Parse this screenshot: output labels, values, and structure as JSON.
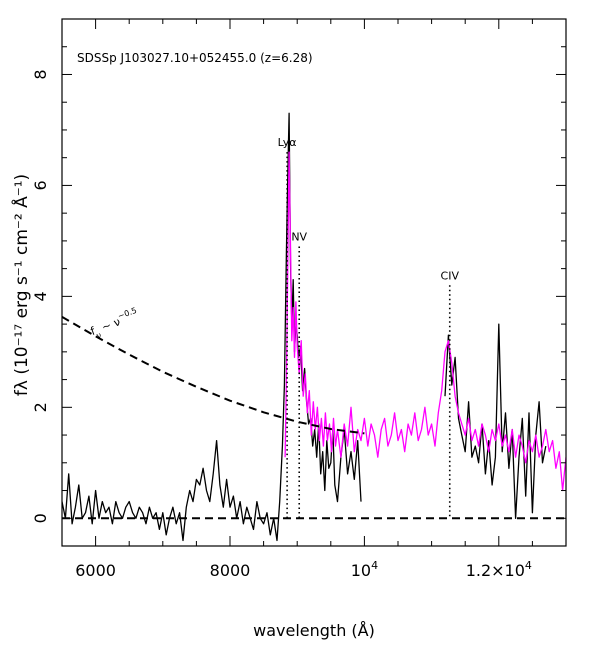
{
  "chart_data": {
    "type": "line",
    "title": "SDSSp J103027.10+052455.0 (z=6.28)",
    "xlabel": "wavelength (Å)",
    "ylabel": "fλ (10⁻¹⁷ erg s⁻¹ cm⁻² Å⁻¹)",
    "xlim": [
      5500,
      13000
    ],
    "ylim": [
      -0.5,
      9.0
    ],
    "x_ticks": [
      {
        "value": 6000,
        "label": "6000"
      },
      {
        "value": 8000,
        "label": "8000"
      },
      {
        "value": 10000,
        "label": "10⁴"
      },
      {
        "value": 12000,
        "label": "1.2×10⁴"
      }
    ],
    "y_ticks": [
      {
        "value": 0,
        "label": "0"
      },
      {
        "value": 2,
        "label": "2"
      },
      {
        "value": 4,
        "label": "4"
      },
      {
        "value": 6,
        "label": "6"
      },
      {
        "value": 8,
        "label": "8"
      }
    ],
    "colors": {
      "optical": "#000000",
      "infrared": "#ff00ff",
      "model": "#000000"
    },
    "annotations": [
      {
        "label": "Lyα",
        "x": 8850,
        "y_top": 6.6,
        "y_bottom": 0.0
      },
      {
        "label": "NV",
        "x": 9030,
        "y_top": 4.9,
        "y_bottom": 0.0
      },
      {
        "label": "CIV",
        "x": 11270,
        "y_top": 4.2,
        "y_bottom": 0.0
      }
    ],
    "powerlaw_label": {
      "base": "f",
      "sub": "ν",
      "mid": " ~ ν",
      "sup": "−0.5",
      "x": 5950,
      "y": 3.3
    },
    "series": [
      {
        "style": "solid",
        "points": [
          [
            5500,
            0.3
          ],
          [
            5550,
            0.0
          ],
          [
            5600,
            0.8
          ],
          [
            5650,
            -0.1
          ],
          [
            5700,
            0.2
          ],
          [
            5750,
            0.6
          ],
          [
            5800,
            0.0
          ],
          [
            5850,
            0.1
          ],
          [
            5900,
            0.4
          ],
          [
            5950,
            -0.1
          ],
          [
            6000,
            0.5
          ],
          [
            6050,
            0.0
          ],
          [
            6100,
            0.3
          ],
          [
            6150,
            0.1
          ],
          [
            6200,
            0.2
          ],
          [
            6250,
            -0.1
          ],
          [
            6300,
            0.3
          ],
          [
            6350,
            0.1
          ],
          [
            6400,
            0.0
          ],
          [
            6450,
            0.2
          ],
          [
            6500,
            0.3
          ],
          [
            6550,
            0.1
          ],
          [
            6600,
            0.0
          ],
          [
            6650,
            0.2
          ],
          [
            6700,
            0.1
          ],
          [
            6750,
            -0.1
          ],
          [
            6800,
            0.2
          ],
          [
            6850,
            0.0
          ],
          [
            6900,
            0.1
          ],
          [
            6950,
            -0.2
          ],
          [
            7000,
            0.1
          ],
          [
            7050,
            -0.3
          ],
          [
            7100,
            0.0
          ],
          [
            7150,
            0.2
          ],
          [
            7200,
            -0.1
          ],
          [
            7250,
            0.1
          ],
          [
            7300,
            -0.4
          ],
          [
            7350,
            0.2
          ],
          [
            7400,
            0.5
          ],
          [
            7450,
            0.3
          ],
          [
            7500,
            0.7
          ],
          [
            7550,
            0.6
          ],
          [
            7600,
            0.9
          ],
          [
            7650,
            0.5
          ],
          [
            7700,
            0.3
          ],
          [
            7750,
            0.8
          ],
          [
            7800,
            1.4
          ],
          [
            7850,
            0.6
          ],
          [
            7900,
            0.2
          ],
          [
            7950,
            0.7
          ],
          [
            8000,
            0.2
          ],
          [
            8050,
            0.4
          ],
          [
            8100,
            0.0
          ],
          [
            8150,
            0.3
          ],
          [
            8200,
            -0.1
          ],
          [
            8250,
            0.2
          ],
          [
            8300,
            0.0
          ],
          [
            8350,
            -0.2
          ],
          [
            8400,
            0.3
          ],
          [
            8450,
            0.0
          ],
          [
            8500,
            -0.1
          ],
          [
            8550,
            0.1
          ],
          [
            8600,
            -0.3
          ],
          [
            8650,
            0.0
          ],
          [
            8700,
            -0.4
          ],
          [
            8740,
            0.3
          ],
          [
            8780,
            1.3
          ],
          [
            8810,
            2.4
          ],
          [
            8840,
            4.8
          ],
          [
            8860,
            6.2
          ],
          [
            8880,
            7.3
          ],
          [
            8900,
            4.6
          ],
          [
            8920,
            3.5
          ],
          [
            8940,
            4.3
          ],
          [
            8960,
            3.0
          ],
          [
            8980,
            3.5
          ],
          [
            9000,
            3.3
          ],
          [
            9020,
            2.9
          ],
          [
            9050,
            3.1
          ],
          [
            9080,
            2.3
          ],
          [
            9110,
            2.7
          ],
          [
            9140,
            2.1
          ],
          [
            9170,
            1.7
          ],
          [
            9200,
            1.8
          ],
          [
            9230,
            1.3
          ],
          [
            9260,
            1.6
          ],
          [
            9290,
            1.1
          ],
          [
            9320,
            1.7
          ],
          [
            9350,
            0.8
          ],
          [
            9380,
            1.2
          ],
          [
            9410,
            0.5
          ],
          [
            9440,
            1.4
          ],
          [
            9470,
            0.9
          ],
          [
            9500,
            1.0
          ],
          [
            9530,
            1.6
          ],
          [
            9560,
            0.6
          ],
          [
            9600,
            0.3
          ],
          [
            9650,
            1.1
          ],
          [
            9700,
            1.6
          ],
          [
            9750,
            0.8
          ],
          [
            9800,
            1.2
          ],
          [
            9850,
            0.7
          ],
          [
            9900,
            1.4
          ],
          [
            9950,
            0.3
          ],
          null,
          [
            11200,
            2.2
          ],
          [
            11250,
            3.3
          ],
          [
            11300,
            2.4
          ],
          [
            11350,
            2.9
          ],
          [
            11400,
            1.8
          ],
          [
            11450,
            1.5
          ],
          [
            11500,
            1.2
          ],
          [
            11550,
            2.1
          ],
          [
            11600,
            1.1
          ],
          [
            11650,
            1.3
          ],
          [
            11700,
            1.0
          ],
          [
            11750,
            1.7
          ],
          [
            11800,
            0.8
          ],
          [
            11850,
            1.4
          ],
          [
            11900,
            0.6
          ],
          [
            11950,
            1.1
          ],
          [
            12000,
            3.5
          ],
          [
            12050,
            1.2
          ],
          [
            12100,
            1.9
          ],
          [
            12150,
            0.9
          ],
          [
            12200,
            1.6
          ],
          [
            12250,
            0.0
          ],
          [
            12300,
            1.1
          ],
          [
            12350,
            1.8
          ],
          [
            12400,
            0.4
          ],
          [
            12450,
            1.9
          ],
          [
            12500,
            0.1
          ],
          [
            12550,
            1.5
          ],
          [
            12600,
            2.1
          ],
          [
            12650,
            1.0
          ],
          [
            12700,
            1.3
          ]
        ]
      },
      {
        "style": "solid",
        "points": [
          [
            8820,
            1.1
          ],
          [
            8840,
            2.5
          ],
          [
            8860,
            4.6
          ],
          [
            8880,
            6.6
          ],
          [
            8900,
            4.9
          ],
          [
            8920,
            3.2
          ],
          [
            8940,
            3.8
          ],
          [
            8960,
            2.9
          ],
          [
            8980,
            3.9
          ],
          [
            9000,
            3.1
          ],
          [
            9030,
            2.6
          ],
          [
            9060,
            3.2
          ],
          [
            9090,
            2.2
          ],
          [
            9120,
            2.6
          ],
          [
            9150,
            1.9
          ],
          [
            9180,
            2.3
          ],
          [
            9210,
            1.5
          ],
          [
            9240,
            2.1
          ],
          [
            9270,
            1.6
          ],
          [
            9300,
            2.0
          ],
          [
            9330,
            1.4
          ],
          [
            9360,
            1.8
          ],
          [
            9390,
            1.3
          ],
          [
            9420,
            1.9
          ],
          [
            9450,
            1.4
          ],
          [
            9480,
            1.7
          ],
          [
            9510,
            1.2
          ],
          [
            9540,
            1.8
          ],
          [
            9570,
            1.3
          ],
          [
            9600,
            1.6
          ],
          [
            9650,
            1.1
          ],
          [
            9700,
            1.7
          ],
          [
            9750,
            1.3
          ],
          [
            9800,
            2.0
          ],
          [
            9850,
            1.2
          ],
          [
            9900,
            1.6
          ],
          [
            9950,
            1.4
          ],
          [
            10000,
            1.8
          ],
          [
            10050,
            1.3
          ],
          [
            10100,
            1.7
          ],
          [
            10150,
            1.5
          ],
          [
            10200,
            1.1
          ],
          [
            10250,
            1.6
          ],
          [
            10300,
            1.8
          ],
          [
            10350,
            1.3
          ],
          [
            10400,
            1.5
          ],
          [
            10450,
            1.9
          ],
          [
            10500,
            1.4
          ],
          [
            10550,
            1.6
          ],
          [
            10600,
            1.2
          ],
          [
            10650,
            1.7
          ],
          [
            10700,
            1.5
          ],
          [
            10750,
            1.9
          ],
          [
            10800,
            1.4
          ],
          [
            10850,
            1.6
          ],
          [
            10900,
            2.0
          ],
          [
            10950,
            1.5
          ],
          [
            11000,
            1.7
          ],
          [
            11050,
            1.3
          ],
          [
            11100,
            1.9
          ],
          [
            11150,
            2.3
          ],
          [
            11200,
            3.0
          ],
          [
            11250,
            3.2
          ],
          [
            11300,
            2.8
          ],
          [
            11350,
            2.2
          ],
          [
            11400,
            1.9
          ],
          [
            11450,
            1.7
          ],
          [
            11500,
            1.5
          ],
          [
            11550,
            1.8
          ],
          [
            11600,
            1.4
          ],
          [
            11650,
            1.6
          ],
          [
            11700,
            1.3
          ],
          [
            11750,
            1.7
          ],
          [
            11800,
            1.5
          ],
          [
            11850,
            1.2
          ],
          [
            11900,
            1.6
          ],
          [
            11950,
            1.4
          ],
          [
            12000,
            1.7
          ],
          [
            12050,
            1.3
          ],
          [
            12100,
            1.5
          ],
          [
            12150,
            1.2
          ],
          [
            12200,
            1.6
          ],
          [
            12250,
            1.1
          ],
          [
            12300,
            1.5
          ],
          [
            12350,
            1.3
          ],
          [
            12400,
            1.0
          ],
          [
            12450,
            1.4
          ],
          [
            12500,
            1.2
          ],
          [
            12550,
            1.5
          ],
          [
            12600,
            1.1
          ],
          [
            12650,
            1.3
          ],
          [
            12700,
            1.6
          ],
          [
            12750,
            1.2
          ],
          [
            12800,
            1.4
          ],
          [
            12850,
            0.9
          ],
          [
            12900,
            1.2
          ],
          [
            12950,
            0.5
          ],
          [
            13000,
            1.1
          ]
        ]
      },
      {
        "style": "dashed",
        "points": [
          [
            5500,
            3.63
          ],
          [
            6000,
            3.28
          ],
          [
            6500,
            2.95
          ],
          [
            7000,
            2.64
          ],
          [
            7500,
            2.37
          ],
          [
            8000,
            2.12
          ],
          [
            8500,
            1.91
          ],
          [
            9000,
            1.74
          ],
          [
            9500,
            1.61
          ],
          [
            10000,
            1.53
          ]
        ]
      },
      {
        "style": "dashed",
        "points": [
          [
            5500,
            0
          ],
          [
            13000,
            0
          ]
        ]
      }
    ]
  }
}
